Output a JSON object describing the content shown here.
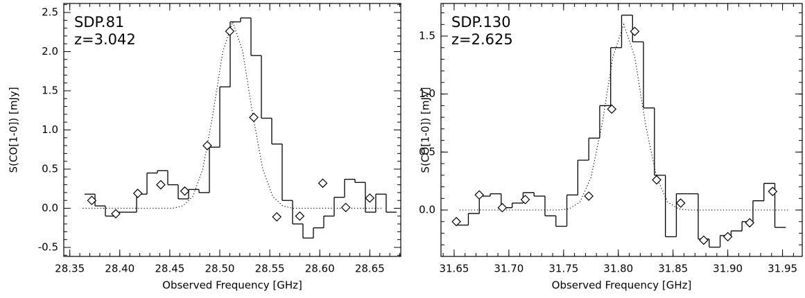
{
  "chart_data": [
    {
      "type": "line",
      "xlabel": "Observed Frequency [GHz]",
      "ylabel": "S(CO[1-0]) [mJy]",
      "annotations": [
        "SDP.81",
        "z=3.042"
      ],
      "xlim": [
        28.344,
        28.681
      ],
      "ylim": [
        -0.615,
        2.615
      ],
      "xticks": [
        28.35,
        {
          "value": 28.4,
          "label": "28.40"
        },
        28.45,
        {
          "value": 28.5,
          "label": "28.50"
        },
        28.55,
        {
          "value": 28.6,
          "label": "28.60"
        },
        28.65
      ],
      "yticks": [
        -0.5,
        {
          "value": 0,
          "label": "0.0"
        },
        0.5,
        {
          "value": 1,
          "label": "1.0"
        },
        1.5,
        {
          "value": 2,
          "label": "2.0"
        },
        2.5
      ],
      "xminorticks": [
        28.35,
        28.36,
        28.37,
        28.38,
        28.39,
        28.4,
        28.41,
        28.42,
        28.43,
        28.44,
        28.45,
        28.46,
        28.47,
        28.48,
        28.49,
        28.5,
        28.51,
        28.52,
        28.53,
        28.54,
        28.55,
        28.56,
        28.57,
        28.58,
        28.59,
        28.6,
        28.61,
        28.62,
        28.63,
        28.64,
        28.65,
        28.66,
        28.67,
        28.68
      ],
      "yminorticks": [
        -0.6,
        -0.5,
        -0.4,
        -0.3,
        -0.2,
        -0.1,
        0,
        0.1,
        0.2,
        0.3,
        0.4,
        0.5,
        0.6,
        0.7,
        0.8,
        0.9,
        1,
        1.1,
        1.2,
        1.3,
        1.4,
        1.5,
        1.6,
        1.7,
        1.8,
        1.9,
        2,
        2.1,
        2.2,
        2.3,
        2.4,
        2.5,
        2.6
      ],
      "series": [
        {
          "style": "steps",
          "color": "#000000",
          "x": [
            28.37,
            28.3804,
            28.3908,
            28.4012,
            28.4116,
            28.422,
            28.4324,
            28.4428,
            28.4532,
            28.4636,
            28.474,
            28.4844,
            28.4948,
            28.5052,
            28.5156,
            28.526,
            28.5364,
            28.5468,
            28.5572,
            28.5676,
            28.578,
            28.5884,
            28.5988,
            28.6092,
            28.6196,
            28.63,
            28.6404,
            28.6508,
            28.6612,
            28.6716
          ],
          "values": [
            0.18,
            0.03,
            -0.1,
            -0.05,
            -0.05,
            0.18,
            0.45,
            0.48,
            0.3,
            0.12,
            0.24,
            0.2,
            0.78,
            1.55,
            2.38,
            2.43,
            1.95,
            1.15,
            0.82,
            0.1,
            -0.2,
            -0.38,
            -0.25,
            -0.1,
            0.14,
            0.37,
            0.33,
            -0.05,
            0.18,
            -0.05
          ]
        },
        {
          "style": "dotted",
          "color": "#000000",
          "x": [
            28.363,
            28.373,
            28.383,
            28.393,
            28.403,
            28.413,
            28.423,
            28.433,
            28.443,
            28.453,
            28.463,
            28.473,
            28.483,
            28.493,
            28.503,
            28.513,
            28.523,
            28.533,
            28.543,
            28.553,
            28.563,
            28.573,
            28.583,
            28.593,
            28.603,
            28.613,
            28.623,
            28.633,
            28.643,
            28.653,
            28.663
          ],
          "values": [
            0,
            0,
            0,
            0,
            0,
            0,
            0,
            0,
            0,
            0,
            0.03,
            0.15,
            0.5,
            1.19,
            2.0,
            2.38,
            2.0,
            1.19,
            0.5,
            0.15,
            0.03,
            0,
            0,
            0,
            0,
            0,
            0,
            0,
            0,
            0,
            0
          ]
        },
        {
          "style": "diamond",
          "color": "#000000",
          "x": [
            28.372,
            28.396,
            28.418,
            28.441,
            28.465,
            28.4875,
            28.51,
            28.534,
            28.557,
            28.58,
            28.603,
            28.626,
            28.65
          ],
          "values": [
            0.1,
            -0.07,
            0.19,
            0.3,
            0.22,
            0.8,
            2.26,
            1.16,
            -0.11,
            -0.1,
            0.32,
            0.01,
            0.13
          ]
        }
      ]
    },
    {
      "type": "line",
      "xlabel": "Observed Frequency [GHz]",
      "ylabel": "S(CO[1-0]) [mJy]",
      "annotations": [
        "SDP.130",
        "z=2.625"
      ],
      "xlim": [
        31.638,
        31.968
      ],
      "ylim": [
        -0.4,
        1.781
      ],
      "xticks": [
        31.65,
        {
          "value": 31.7,
          "label": "31.70"
        },
        31.75,
        {
          "value": 31.8,
          "label": "31.80"
        },
        31.85,
        {
          "value": 31.9,
          "label": "31.90"
        },
        31.95
      ],
      "yticks": [
        {
          "value": 0,
          "label": "0.0"
        },
        0.5,
        {
          "value": 1,
          "label": "1.0"
        },
        1.5
      ],
      "xminorticks": [
        31.64,
        31.65,
        31.66,
        31.67,
        31.68,
        31.69,
        31.7,
        31.71,
        31.72,
        31.73,
        31.74,
        31.75,
        31.76,
        31.77,
        31.78,
        31.79,
        31.8,
        31.81,
        31.82,
        31.83,
        31.84,
        31.85,
        31.86,
        31.87,
        31.88,
        31.89,
        31.9,
        31.91,
        31.92,
        31.93,
        31.94,
        31.95,
        31.96
      ],
      "yminorticks": [
        -0.4,
        -0.3,
        -0.2,
        -0.1,
        0,
        0.1,
        0.2,
        0.3,
        0.4,
        0.5,
        0.6,
        0.7,
        0.8,
        0.9,
        1,
        1.1,
        1.2,
        1.3,
        1.4,
        1.5,
        1.6,
        1.7
      ],
      "series": [
        {
          "style": "steps",
          "color": "#000000",
          "x": [
            31.658,
            31.668,
            31.678,
            31.688,
            31.698,
            31.708,
            31.718,
            31.728,
            31.738,
            31.748,
            31.758,
            31.768,
            31.778,
            31.788,
            31.798,
            31.808,
            31.818,
            31.828,
            31.838,
            31.848,
            31.858,
            31.868,
            31.878,
            31.888,
            31.898,
            31.908,
            31.918,
            31.928,
            31.938,
            31.948
          ],
          "values": [
            -0.13,
            -0.03,
            0.12,
            0.14,
            0.02,
            0.06,
            0.15,
            0.12,
            -0.05,
            -0.14,
            0.13,
            0.43,
            0.62,
            0.9,
            1.4,
            1.68,
            1.45,
            0.88,
            0.3,
            -0.23,
            0.14,
            0.14,
            -0.25,
            -0.32,
            -0.22,
            -0.18,
            -0.1,
            0.08,
            0.23,
            -0.15
          ]
        },
        {
          "style": "dotted",
          "color": "#000000",
          "x": [
            31.655,
            31.665,
            31.675,
            31.685,
            31.695,
            31.705,
            31.715,
            31.725,
            31.735,
            31.745,
            31.755,
            31.765,
            31.775,
            31.785,
            31.795,
            31.805,
            31.815,
            31.825,
            31.835,
            31.845,
            31.855,
            31.865,
            31.875,
            31.885,
            31.895,
            31.905,
            31.915,
            31.925,
            31.935,
            31.945,
            31.955
          ],
          "values": [
            0,
            0,
            0,
            0,
            0,
            0,
            0,
            0,
            0,
            0,
            0.01,
            0.07,
            0.28,
            0.73,
            1.32,
            1.6,
            1.32,
            0.73,
            0.28,
            0.07,
            0.01,
            0,
            0,
            0,
            0,
            0,
            0,
            0,
            0,
            0,
            0
          ]
        },
        {
          "style": "diamond",
          "color": "#000000",
          "x": [
            31.652,
            31.673,
            31.694,
            31.715,
            31.773,
            31.794,
            31.815,
            31.835,
            31.857,
            31.878,
            31.9,
            31.92,
            31.941
          ],
          "values": [
            -0.1,
            0.13,
            0.02,
            0.09,
            0.12,
            0.87,
            1.54,
            0.26,
            0.06,
            -0.26,
            -0.23,
            -0.11,
            0.16
          ]
        }
      ]
    }
  ]
}
